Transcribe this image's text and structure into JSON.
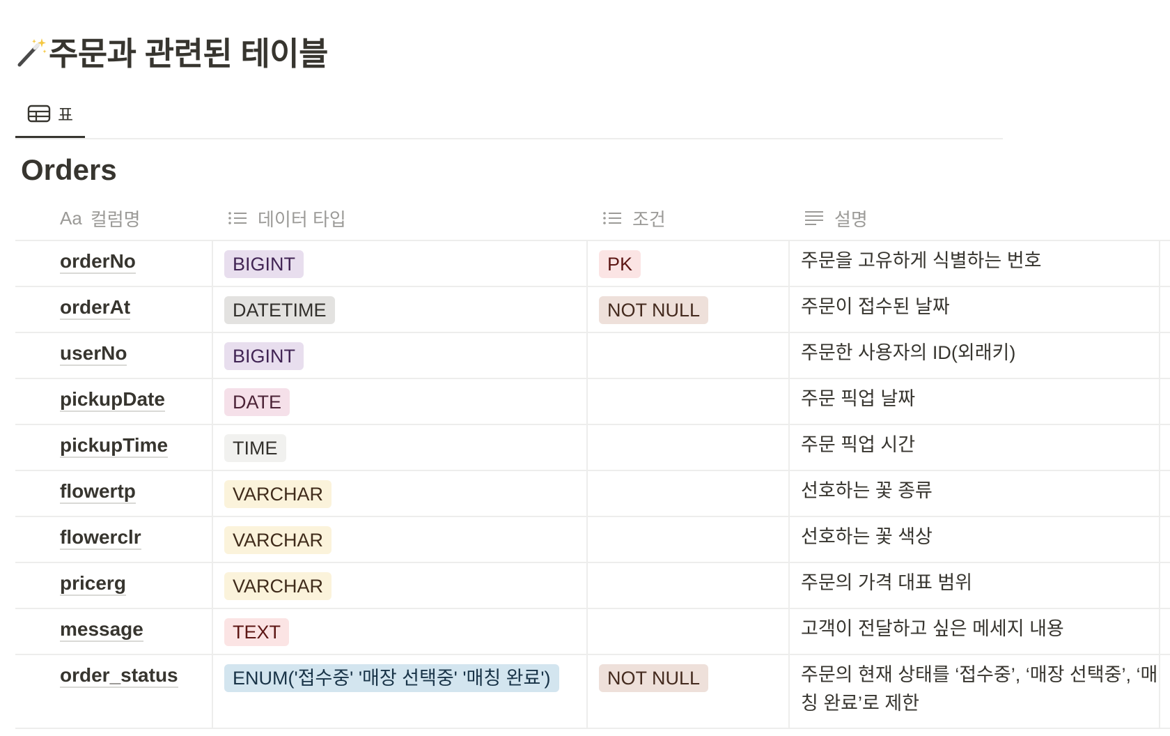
{
  "page": {
    "title": "주문과 관련된 테이블",
    "icon": "magic-wand-icon"
  },
  "views": [
    {
      "label": "표",
      "icon": "table-icon"
    }
  ],
  "database": {
    "title": "Orders",
    "columns": [
      {
        "label": "컬럼명",
        "icon": "title-aa-icon",
        "icon_text": "Aa"
      },
      {
        "label": "데이터 타입",
        "icon": "list-icon"
      },
      {
        "label": "조건",
        "icon": "list-icon"
      },
      {
        "label": "설명",
        "icon": "text-lines-icon"
      }
    ],
    "rows": [
      {
        "name": "orderNo",
        "type": "BIGINT",
        "type_color": "purple",
        "cond": "PK",
        "cond_color": "red",
        "desc": "주문을 고유하게 식별하는 번호"
      },
      {
        "name": "orderAt",
        "type": "DATETIME",
        "type_color": "gray",
        "cond": "NOT NULL",
        "cond_color": "brown",
        "desc": "주문이 접수된 날짜"
      },
      {
        "name": "userNo",
        "type": "BIGINT",
        "type_color": "purple",
        "cond": "",
        "cond_color": "",
        "desc": "주문한 사용자의 ID(외래키)"
      },
      {
        "name": "pickupDate",
        "type": "DATE",
        "type_color": "pink",
        "cond": "",
        "cond_color": "",
        "desc": "주문 픽업 날짜"
      },
      {
        "name": "pickupTime",
        "type": "TIME",
        "type_color": "lightgray",
        "cond": "",
        "cond_color": "",
        "desc": "주문 픽업 시간"
      },
      {
        "name": "flowertp",
        "type": "VARCHAR",
        "type_color": "yellow",
        "cond": "",
        "cond_color": "",
        "desc": "선호하는 꽃 종류"
      },
      {
        "name": "flowerclr",
        "type": "VARCHAR",
        "type_color": "yellow",
        "cond": "",
        "cond_color": "",
        "desc": "선호하는 꽃 색상"
      },
      {
        "name": "pricerg",
        "type": "VARCHAR",
        "type_color": "yellow",
        "cond": "",
        "cond_color": "",
        "desc": "주문의 가격 대표 범위"
      },
      {
        "name": "message",
        "type": "TEXT",
        "type_color": "red",
        "cond": "",
        "cond_color": "",
        "desc": "고객이 전달하고 싶은 메세지 내용"
      },
      {
        "name": "order_status",
        "type": "ENUM('접수중' '매장 선택중' '매칭 완료')",
        "type_color": "blue",
        "cond": "NOT NULL",
        "cond_color": "brown",
        "desc": "주문의 현재 상태를 ‘접수중’, ‘매장 선택중’, ‘매칭 완료’로 제한"
      }
    ]
  },
  "tag_colors": {
    "purple": {
      "bg": "#e8deee",
      "fg": "#412454"
    },
    "gray": {
      "bg": "#e3e2e0",
      "fg": "#32302c"
    },
    "lightgray": {
      "bg": "#f1f1ef",
      "fg": "#32302c"
    },
    "red": {
      "bg": "#fbe4e4",
      "fg": "#5d1715"
    },
    "brown": {
      "bg": "#eee0da",
      "fg": "#442a1e"
    },
    "pink": {
      "bg": "#f5e0e9",
      "fg": "#4c2337"
    },
    "yellow": {
      "bg": "#fbf3db",
      "fg": "#402c1b"
    },
    "blue": {
      "bg": "#d3e5ef",
      "fg": "#183347"
    }
  }
}
